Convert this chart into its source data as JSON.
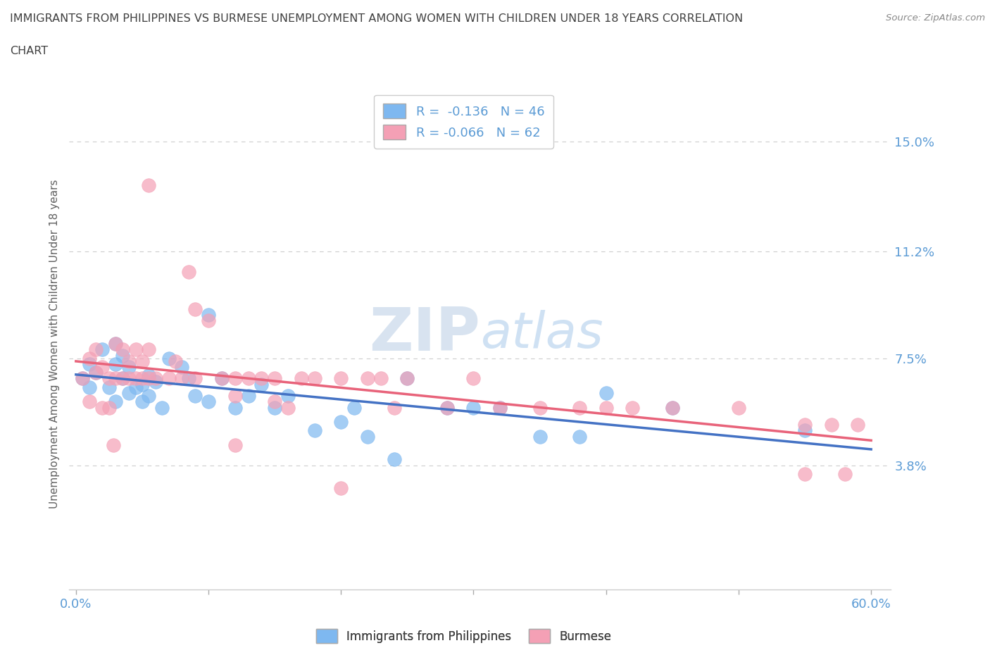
{
  "title_line1": "IMMIGRANTS FROM PHILIPPINES VS BURMESE UNEMPLOYMENT AMONG WOMEN WITH CHILDREN UNDER 18 YEARS CORRELATION",
  "title_line2": "CHART",
  "source": "Source: ZipAtlas.com",
  "ylabel": "Unemployment Among Women with Children Under 18 years",
  "xlim": [
    0.0,
    0.6
  ],
  "ylim": [
    0.0,
    0.155
  ],
  "yticks": [
    0.038,
    0.075,
    0.112,
    0.15
  ],
  "ytick_labels": [
    "3.8%",
    "7.5%",
    "11.2%",
    "15.0%"
  ],
  "xticks": [
    0.0,
    0.1,
    0.2,
    0.3,
    0.4,
    0.5,
    0.6
  ],
  "xtick_labels": [
    "0.0%",
    "",
    "",
    "",
    "",
    "",
    "60.0%"
  ],
  "legend_label1": "Immigrants from Philippines",
  "legend_label2": "Burmese",
  "R1": -0.136,
  "N1": 46,
  "R2": -0.066,
  "N2": 62,
  "color1": "#7EB8F0",
  "color2": "#F4A0B5",
  "line_color1": "#4472C4",
  "line_color2": "#E8637A",
  "axis_color": "#5B9BD5",
  "title_color": "#404040",
  "grid_color": "#CCCCCC",
  "watermark_color": "#C8D8EA",
  "philippines_x": [
    0.005,
    0.01,
    0.01,
    0.015,
    0.02,
    0.025,
    0.03,
    0.03,
    0.03,
    0.035,
    0.035,
    0.04,
    0.04,
    0.045,
    0.05,
    0.05,
    0.055,
    0.055,
    0.06,
    0.065,
    0.07,
    0.08,
    0.085,
    0.09,
    0.1,
    0.1,
    0.11,
    0.12,
    0.13,
    0.14,
    0.15,
    0.16,
    0.18,
    0.2,
    0.21,
    0.22,
    0.24,
    0.25,
    0.28,
    0.3,
    0.32,
    0.35,
    0.38,
    0.4,
    0.45,
    0.55
  ],
  "philippines_y": [
    0.068,
    0.073,
    0.065,
    0.07,
    0.078,
    0.065,
    0.06,
    0.073,
    0.08,
    0.068,
    0.076,
    0.063,
    0.072,
    0.065,
    0.06,
    0.066,
    0.069,
    0.062,
    0.067,
    0.058,
    0.075,
    0.072,
    0.068,
    0.062,
    0.09,
    0.06,
    0.068,
    0.058,
    0.062,
    0.066,
    0.058,
    0.062,
    0.05,
    0.053,
    0.058,
    0.048,
    0.04,
    0.068,
    0.058,
    0.058,
    0.058,
    0.048,
    0.048,
    0.063,
    0.058,
    0.05
  ],
  "burmese_x": [
    0.005,
    0.01,
    0.01,
    0.015,
    0.015,
    0.02,
    0.02,
    0.025,
    0.025,
    0.03,
    0.03,
    0.035,
    0.035,
    0.04,
    0.04,
    0.045,
    0.045,
    0.05,
    0.05,
    0.055,
    0.055,
    0.055,
    0.06,
    0.07,
    0.075,
    0.08,
    0.085,
    0.09,
    0.09,
    0.1,
    0.11,
    0.12,
    0.12,
    0.13,
    0.14,
    0.15,
    0.15,
    0.16,
    0.17,
    0.18,
    0.2,
    0.22,
    0.23,
    0.24,
    0.25,
    0.28,
    0.3,
    0.32,
    0.35,
    0.38,
    0.4,
    0.42,
    0.45,
    0.5,
    0.55,
    0.57,
    0.59,
    0.028,
    0.12,
    0.2,
    0.55,
    0.58
  ],
  "burmese_y": [
    0.068,
    0.075,
    0.06,
    0.07,
    0.078,
    0.072,
    0.058,
    0.068,
    0.058,
    0.068,
    0.08,
    0.078,
    0.068,
    0.068,
    0.074,
    0.068,
    0.078,
    0.074,
    0.068,
    0.068,
    0.078,
    0.135,
    0.068,
    0.068,
    0.074,
    0.068,
    0.105,
    0.092,
    0.068,
    0.088,
    0.068,
    0.068,
    0.062,
    0.068,
    0.068,
    0.068,
    0.06,
    0.058,
    0.068,
    0.068,
    0.068,
    0.068,
    0.068,
    0.058,
    0.068,
    0.058,
    0.068,
    0.058,
    0.058,
    0.058,
    0.058,
    0.058,
    0.058,
    0.058,
    0.052,
    0.052,
    0.052,
    0.045,
    0.045,
    0.03,
    0.035,
    0.035
  ]
}
